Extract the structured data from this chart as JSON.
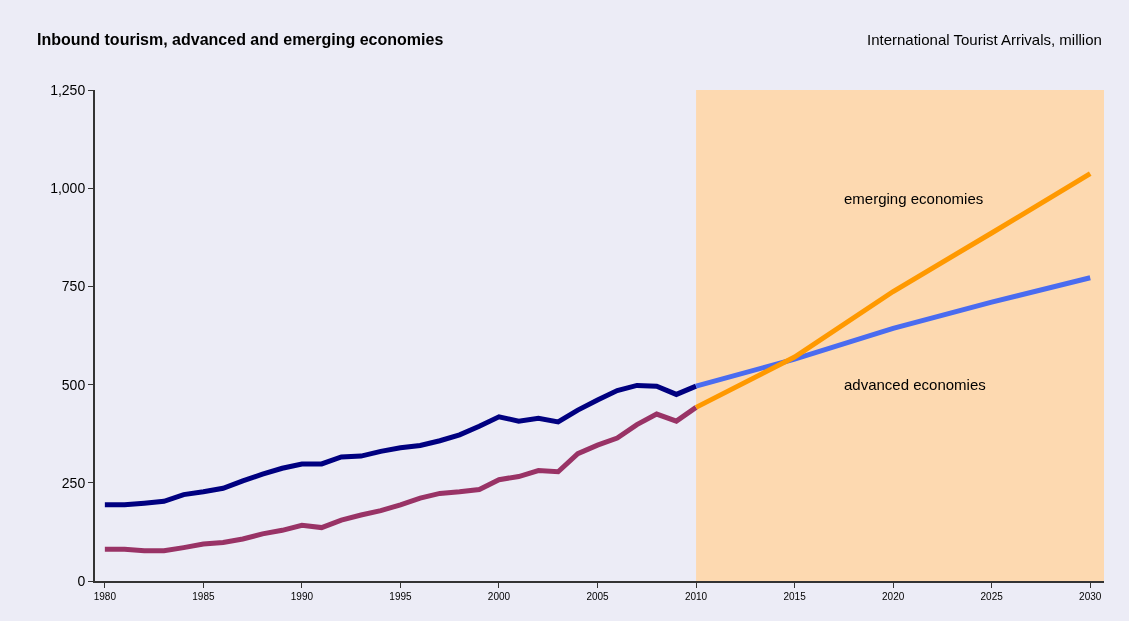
{
  "chart_data": {
    "type": "line",
    "title": "Inbound tourism, advanced and emerging economies",
    "ylabel": "International Tourist Arrivals, million",
    "series": [
      {
        "color": "#000080",
        "x": [
          1980,
          1981,
          1982,
          1983,
          1984,
          1985,
          1986,
          1987,
          1988,
          1989,
          1990,
          1991,
          1992,
          1993,
          1994,
          1995,
          1996,
          1997,
          1998,
          1999,
          2000,
          2001,
          2002,
          2003,
          2004,
          2005,
          2006,
          2007,
          2008,
          2009,
          2010
        ],
        "values": [
          194,
          194,
          198,
          203,
          220,
          227,
          236,
          255,
          272,
          287,
          298,
          298,
          316,
          318,
          330,
          339,
          345,
          357,
          372,
          394,
          418,
          407,
          414,
          405,
          435,
          461,
          485,
          498,
          496,
          475,
          496
        ]
      },
      {
        "color": "#993366",
        "x": [
          1980,
          1981,
          1982,
          1983,
          1984,
          1985,
          1986,
          1987,
          1988,
          1989,
          1990,
          1991,
          1992,
          1993,
          1994,
          1995,
          1996,
          1997,
          1998,
          1999,
          2000,
          2001,
          2002,
          2003,
          2004,
          2005,
          2006,
          2007,
          2008,
          2009,
          2010
        ],
        "values": [
          81,
          81,
          77,
          77,
          85,
          94,
          98,
          107,
          120,
          129,
          142,
          136,
          155,
          168,
          179,
          194,
          211,
          223,
          227,
          233,
          258,
          266,
          281,
          278,
          324,
          346,
          364,
          398,
          425,
          407,
          442
        ]
      },
      {
        "name": "advanced economies",
        "color": "#4a6cf0",
        "x": [
          2010,
          2015,
          2020,
          2025,
          2030
        ],
        "values": [
          496,
          565,
          643,
          710,
          772
        ]
      },
      {
        "name": "emerging economies",
        "color": "#ff9900",
        "x": [
          2010,
          2015,
          2020,
          2025,
          2030
        ],
        "values": [
          442,
          570,
          737,
          886,
          1037
        ]
      }
    ],
    "xlim": [
      1979.5,
      2030.7
    ],
    "xticks": [
      1980,
      1985,
      1990,
      1995,
      2000,
      2005,
      2010,
      2015,
      2020,
      2025,
      2030
    ],
    "ylim": [
      0,
      1250
    ],
    "yticks": [
      0,
      250,
      500,
      750,
      {
        "value": 1000,
        "label": "1,000"
      },
      {
        "value": 1250,
        "label": "1,250"
      }
    ],
    "bands": [
      {
        "axis": "x",
        "from": 2010,
        "to": 2030.7,
        "color": "#fdd9b0"
      }
    ],
    "grid": false,
    "marker": "none",
    "line_style": "solid"
  }
}
